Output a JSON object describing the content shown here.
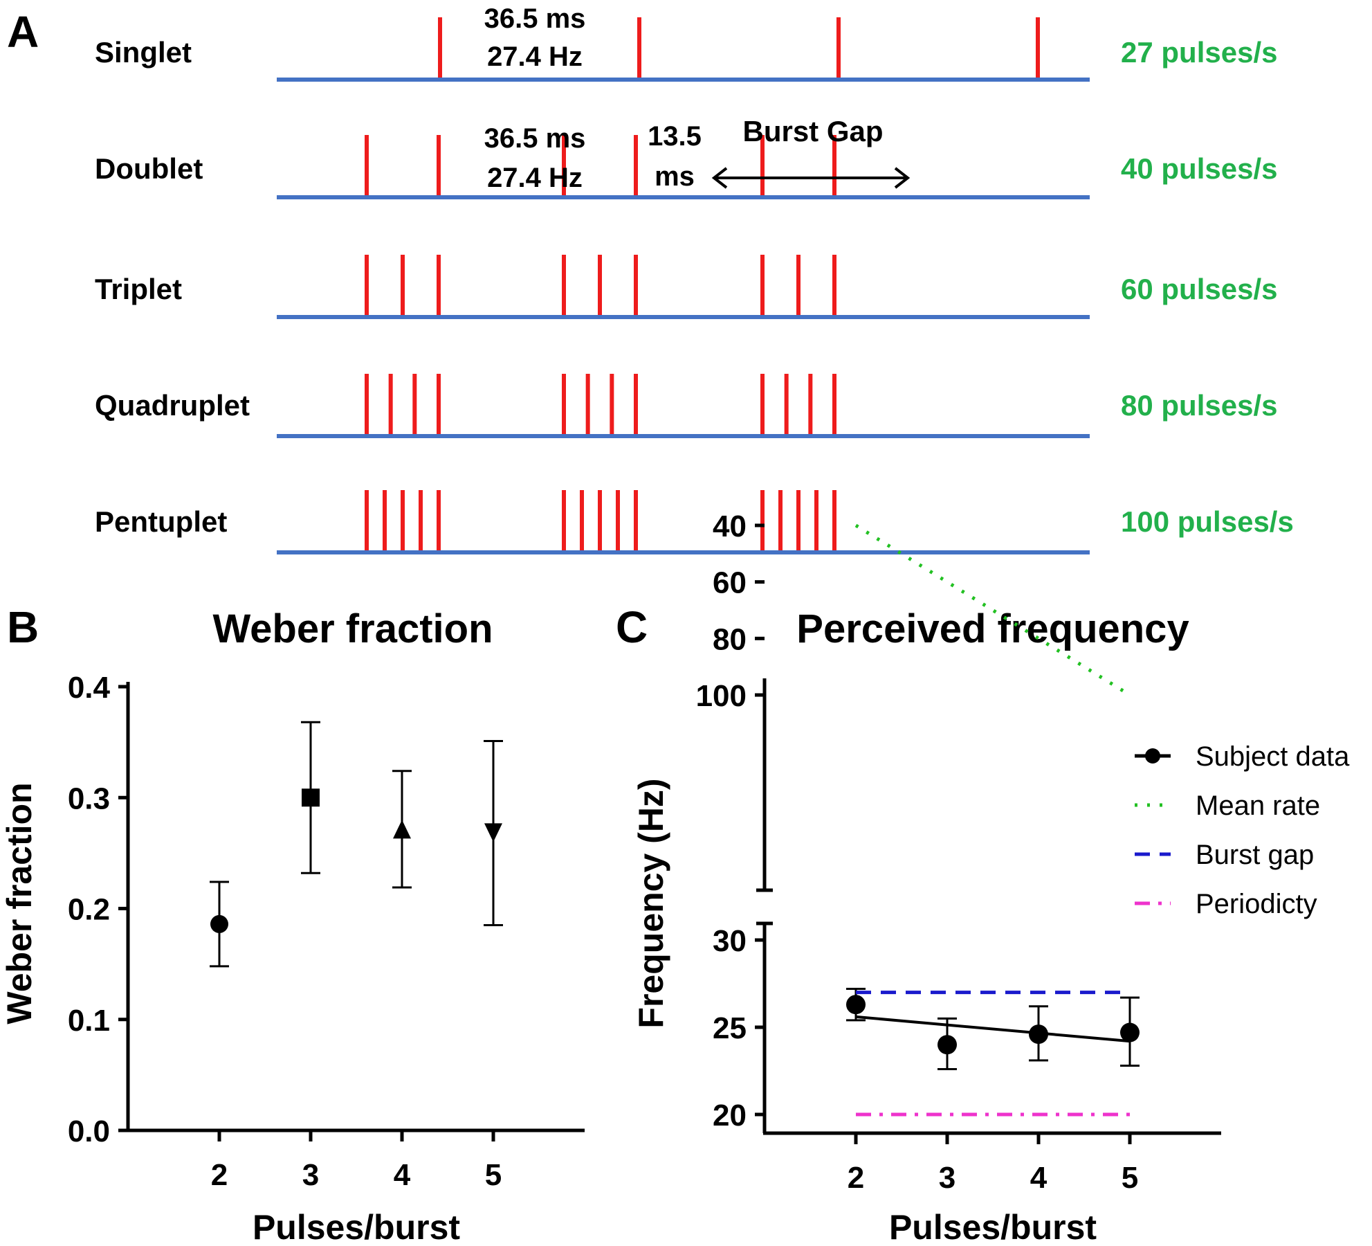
{
  "panel_a": {
    "label": "A",
    "rows": [
      {
        "name": "Singlet",
        "rate": "27 pulses/s",
        "pulses_per_burst": 1
      },
      {
        "name": "Doublet",
        "rate": "40 pulses/s",
        "pulses_per_burst": 2
      },
      {
        "name": "Triplet",
        "rate": "60 pulses/s",
        "pulses_per_burst": 3
      },
      {
        "name": "Quadruplet",
        "rate": "80 pulses/s",
        "pulses_per_burst": 4
      },
      {
        "name": "Pentuplet",
        "rate": "100 pulses/s",
        "pulses_per_burst": 5
      }
    ],
    "annotations": {
      "singlet_interval_ms": "36.5 ms",
      "singlet_interval_hz": "27.4 Hz",
      "doublet_interval_ms": "36.5 ms",
      "doublet_interval_hz": "27.4 Hz",
      "intra_burst_value": "13.5",
      "intra_burst_unit": "ms",
      "burst_gap": "Burst Gap"
    },
    "colors": {
      "pulse": "#ee1c1c",
      "baseline": "#4472c4",
      "rate": "#22b04b"
    }
  },
  "chart_data": [
    {
      "panel": "B",
      "type": "scatter",
      "title": "Weber fraction",
      "xlabel": "Pulses/burst",
      "ylabel": "Weber fraction",
      "categories": [
        "2",
        "3",
        "4",
        "5"
      ],
      "x": [
        2,
        3,
        4,
        5
      ],
      "xlim": [
        1,
        6
      ],
      "ylim": [
        0,
        0.4
      ],
      "yticks": [
        "0.0",
        "0.1",
        "0.2",
        "0.3",
        "0.4"
      ],
      "series": [
        {
          "name": "Weber fraction",
          "values": [
            0.186,
            0.3,
            0.27,
            0.27
          ],
          "err_low": [
            0.148,
            0.232,
            0.219,
            0.185
          ],
          "err_high": [
            0.224,
            0.368,
            0.324,
            0.351
          ],
          "markers": [
            "circle",
            "square",
            "triangle-up",
            "triangle-down"
          ]
        }
      ]
    },
    {
      "panel": "C",
      "type": "line",
      "title": "Perceived frequency",
      "xlabel": "Pulses/burst",
      "ylabel": "Frequency (Hz)",
      "categories": [
        "2",
        "3",
        "4",
        "5"
      ],
      "x": [
        2,
        3,
        4,
        5
      ],
      "xlim": [
        1,
        6
      ],
      "axis_break": [
        31,
        35
      ],
      "yticks_upper": [
        "40",
        "60",
        "80",
        "100"
      ],
      "yticks_lower": [
        "20",
        "25",
        "30"
      ],
      "series": [
        {
          "name": "Subject data",
          "values": [
            26.3,
            24.0,
            24.6,
            24.7
          ],
          "err_low": [
            25.4,
            22.6,
            23.1,
            22.8
          ],
          "err_high": [
            27.2,
            25.5,
            26.2,
            26.7
          ],
          "fit": [
            25.6,
            24.2
          ],
          "style": "solid-marker",
          "color": "#000000"
        },
        {
          "name": "Mean rate",
          "values": [
            40,
            60,
            80,
            100
          ],
          "style": "dotted",
          "color": "#22c022"
        },
        {
          "name": "Burst gap",
          "values": [
            27,
            27,
            27,
            27
          ],
          "style": "dashed",
          "color": "#1a1acc"
        },
        {
          "name": "Periodicty",
          "values": [
            20,
            20,
            20,
            20
          ],
          "style": "dash-dot",
          "color": "#ee33cc"
        }
      ]
    }
  ]
}
